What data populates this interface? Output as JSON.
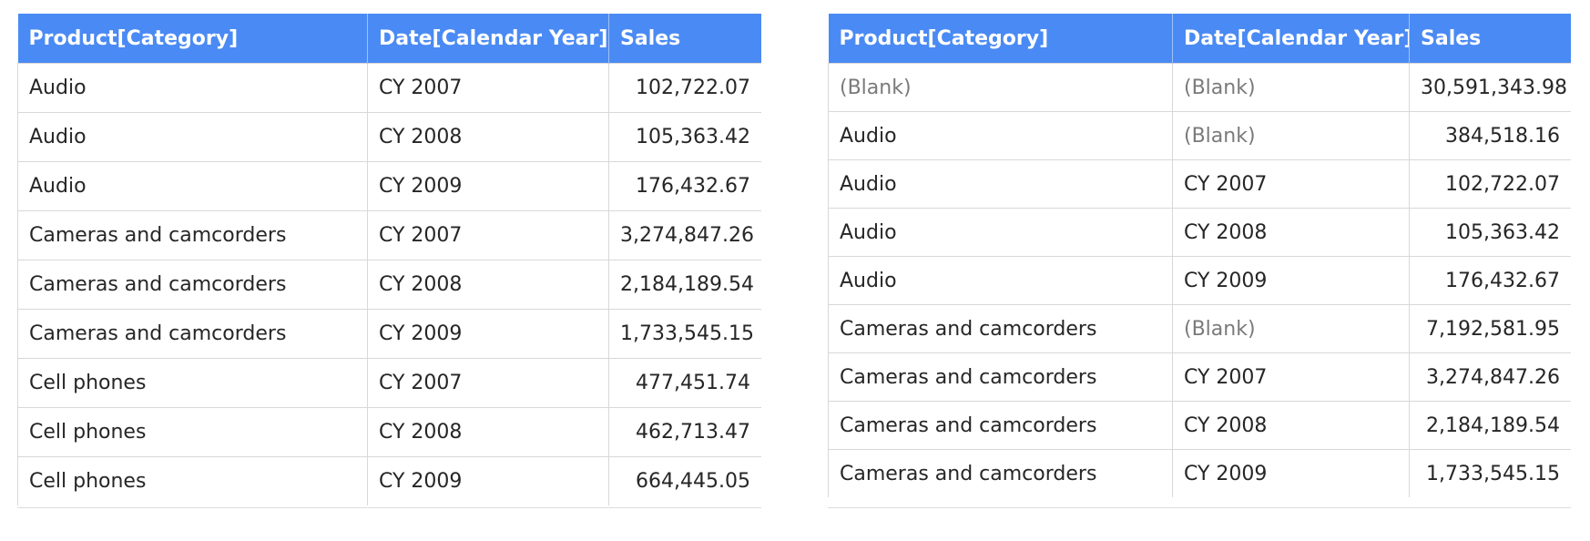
{
  "left_table": {
    "columns": [
      "Product[Category]",
      "Date[Calendar Year]",
      "Sales"
    ],
    "rows": [
      [
        "Audio",
        "CY 2007",
        "102,722.07"
      ],
      [
        "Audio",
        "CY 2008",
        "105,363.42"
      ],
      [
        "Audio",
        "CY 2009",
        "176,432.67"
      ],
      [
        "Cameras and camcorders",
        "CY 2007",
        "3,274,847.26"
      ],
      [
        "Cameras and camcorders",
        "CY 2008",
        "2,184,189.54"
      ],
      [
        "Cameras and camcorders",
        "CY 2009",
        "1,733,545.15"
      ],
      [
        "Cell phones",
        "CY 2007",
        "477,451.74"
      ],
      [
        "Cell phones",
        "CY 2008",
        "462,713.47"
      ],
      [
        "Cell phones",
        "CY 2009",
        "664,445.05"
      ]
    ]
  },
  "right_table": {
    "columns": [
      "Product[Category]",
      "Date[Calendar Year]",
      "Sales"
    ],
    "rows": [
      [
        "(Blank)",
        "(Blank)",
        "30,591,343.98"
      ],
      [
        "Audio",
        "(Blank)",
        "384,518.16"
      ],
      [
        "Audio",
        "CY 2007",
        "102,722.07"
      ],
      [
        "Audio",
        "CY 2008",
        "105,363.42"
      ],
      [
        "Audio",
        "CY 2009",
        "176,432.67"
      ],
      [
        "Cameras and camcorders",
        "(Blank)",
        "7,192,581.95"
      ],
      [
        "Cameras and camcorders",
        "CY 2007",
        "3,274,847.26"
      ],
      [
        "Cameras and camcorders",
        "CY 2008",
        "2,184,189.54"
      ],
      [
        "Cameras and camcorders",
        "CY 2009",
        "1,733,545.15"
      ]
    ]
  }
}
